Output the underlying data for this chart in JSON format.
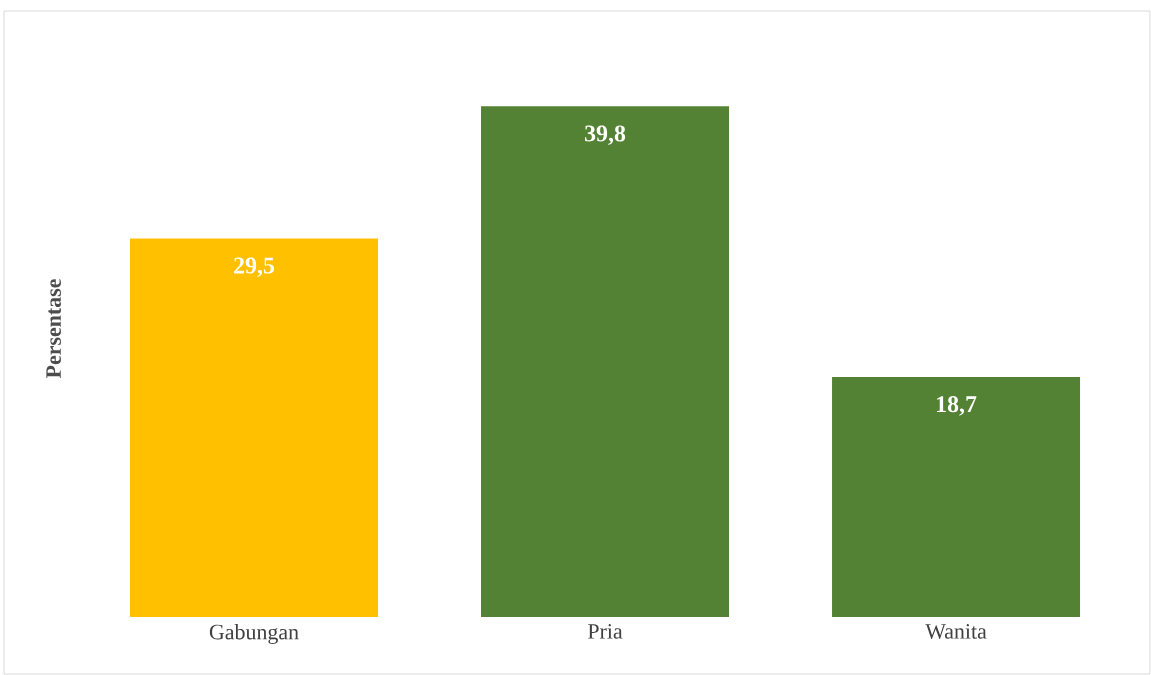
{
  "chart_data": {
    "type": "bar",
    "ylabel": "Persentase",
    "categories": [
      "Gabungan",
      "Pria",
      "Wanita"
    ],
    "values": [
      29.5,
      39.8,
      18.7
    ],
    "value_labels": [
      "29,5",
      "39,8",
      "18,7"
    ],
    "colors": [
      "#ffc000",
      "#548235",
      "#548235"
    ]
  }
}
